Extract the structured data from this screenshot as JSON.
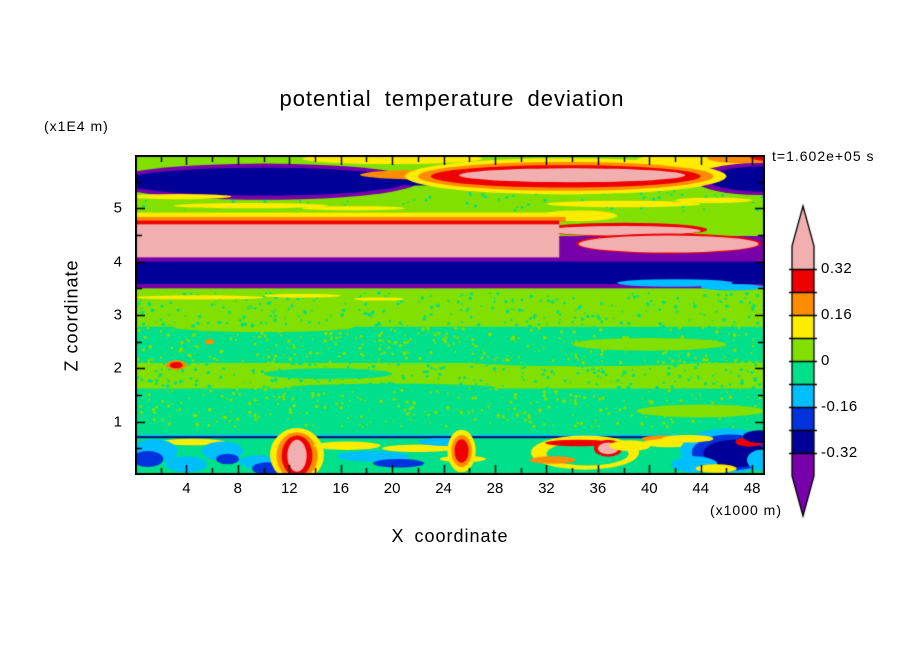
{
  "chart_data": {
    "type": "heatmap",
    "title": "potential temperature deviation",
    "xlabel": "X coordinate",
    "ylabel": "Z coordinate",
    "x_units": "(x1000 m)",
    "y_units": "(x1E4 m)",
    "time_annotation": "t=1.602e+05 s",
    "x_range": [
      0,
      49
    ],
    "y_range": [
      0,
      6
    ],
    "x_ticks": [
      4,
      8,
      12,
      16,
      20,
      24,
      28,
      32,
      36,
      40,
      44,
      48
    ],
    "y_ticks": [
      1,
      2,
      3,
      4,
      5
    ],
    "grid": false,
    "colorbar": {
      "orientation": "vertical",
      "position": "right",
      "colors_top_to_bottom": [
        "#f2afaf",
        "#ee0000",
        "#ff8c00",
        "#ffec00",
        "#82e000",
        "#00df8a",
        "#00bfff",
        "#0033dd",
        "#000099",
        "#7700aa"
      ],
      "boundary_values_top_to_bottom": [
        0.32,
        0.24,
        0.16,
        0.08,
        0,
        -0.08,
        -0.16,
        -0.24,
        -0.32
      ],
      "labels": [
        "0.32",
        "0.16",
        "0",
        "-0.16",
        "-0.32"
      ],
      "labeled_boundary_indices": [
        0,
        2,
        4,
        6,
        8
      ]
    },
    "field": {
      "description": "filled contour field of potential temperature deviation, x in km (x1000 m), z in 1E4 m",
      "shapes": [
        {
          "type": "rect",
          "x0": 0,
          "x1": 49,
          "z0": 0,
          "z1": 6,
          "color": "#82e000"
        },
        {
          "type": "rect",
          "x0": 0,
          "x1": 49,
          "z0": 2.1,
          "z1": 2.78,
          "color": "#00df8a"
        },
        {
          "type": "ellipse",
          "cx": 35,
          "cz": 2.12,
          "rx": 9,
          "rz": 0.08,
          "color": "#00df8a"
        },
        {
          "type": "ellipse",
          "cx": 10,
          "cz": 2.77,
          "rx": 7,
          "rz": 0.09,
          "color": "#82e000"
        },
        {
          "type": "ellipse",
          "cx": 40,
          "cz": 2.45,
          "rx": 6,
          "rz": 0.12,
          "color": "#82e000"
        },
        {
          "type": "rect",
          "x0": 0,
          "x1": 49,
          "z0": 0,
          "z1": 1.62,
          "color": "#00df8a"
        },
        {
          "type": "ellipse",
          "cx": 20,
          "cz": 1.64,
          "rx": 8,
          "rz": 0.07,
          "color": "#00df8a"
        },
        {
          "type": "ellipse",
          "cx": 15,
          "cz": 1.9,
          "rx": 5,
          "rz": 0.1,
          "color": "#00df8a"
        },
        {
          "type": "ellipse",
          "cx": 44,
          "cz": 1.2,
          "rx": 5,
          "rz": 0.12,
          "color": "#82e000"
        },
        {
          "type": "speckle",
          "x0": 0,
          "x1": 49,
          "z0": 2.1,
          "z1": 2.78,
          "color": "#82e000",
          "n": 300,
          "seed": 7,
          "r": 1.2
        },
        {
          "type": "speckle",
          "x0": 0,
          "x1": 49,
          "z0": 1.62,
          "z1": 2.1,
          "color": "#00df8a",
          "n": 220,
          "seed": 11,
          "r": 1.2
        },
        {
          "type": "speckle",
          "x0": 0,
          "x1": 49,
          "z0": 2.78,
          "z1": 3.42,
          "color": "#00df8a",
          "n": 260,
          "seed": 13,
          "r": 1.2
        },
        {
          "type": "speckle",
          "x0": 0,
          "x1": 49,
          "z0": 0.9,
          "z1": 1.62,
          "color": "#82e000",
          "n": 260,
          "seed": 17,
          "r": 1.2
        },
        {
          "type": "speckle",
          "x0": 0,
          "x1": 49,
          "z0": 4.95,
          "z1": 5.35,
          "color": "#00df8a",
          "n": 90,
          "seed": 19,
          "r": 1.1
        },
        {
          "type": "ellipse",
          "cx": 3.2,
          "cz": 2.06,
          "rx": 0.8,
          "rz": 0.09,
          "color": "#ff8c00"
        },
        {
          "type": "ellipse",
          "cx": 3.2,
          "cz": 2.06,
          "rx": 0.5,
          "rz": 0.06,
          "color": "#ee0000"
        },
        {
          "type": "ellipse",
          "cx": 5.8,
          "cz": 2.5,
          "rx": 0.35,
          "rz": 0.05,
          "color": "#ff8c00"
        },
        {
          "type": "ellipse",
          "cx": 5,
          "cz": 3.33,
          "rx": 5,
          "rz": 0.04,
          "color": "#ffec00"
        },
        {
          "type": "ellipse",
          "cx": 13,
          "cz": 3.36,
          "rx": 3,
          "rz": 0.035,
          "color": "#ffec00"
        },
        {
          "type": "ellipse",
          "cx": 19,
          "cz": 3.3,
          "rx": 2,
          "rz": 0.03,
          "color": "#ffec00"
        },
        {
          "type": "ellipse",
          "cx": 20,
          "cz": 5.93,
          "rx": 7,
          "rz": 0.1,
          "color": "#ffec00"
        },
        {
          "type": "ellipse",
          "cx": 44,
          "cz": 5.9,
          "rx": 5,
          "rz": 0.14,
          "color": "#ffec00"
        },
        {
          "type": "ellipse",
          "cx": 47.5,
          "cz": 5.95,
          "rx": 3,
          "rz": 0.11,
          "color": "#ff8c00"
        },
        {
          "type": "ellipse",
          "cx": 49,
          "cz": 5.97,
          "rx": 1.2,
          "rz": 0.08,
          "color": "#ee0000"
        },
        {
          "type": "ellipse",
          "cx": 10,
          "cz": 5.5,
          "rx": 12,
          "rz": 0.34,
          "color": "#7700aa"
        },
        {
          "type": "ellipse",
          "cx": 10,
          "cz": 5.5,
          "rx": 11.2,
          "rz": 0.26,
          "color": "#000099"
        },
        {
          "type": "ellipse",
          "cx": 22,
          "cz": 5.55,
          "rx": 6,
          "rz": 0.12,
          "color": "#000099"
        },
        {
          "type": "ellipse",
          "cx": 48.5,
          "cz": 5.55,
          "rx": 5,
          "rz": 0.3,
          "color": "#7700aa"
        },
        {
          "type": "ellipse",
          "cx": 49,
          "cz": 5.55,
          "rx": 4.5,
          "rz": 0.24,
          "color": "#000099"
        },
        {
          "type": "ellipse",
          "cx": 23,
          "cz": 5.63,
          "rx": 5.5,
          "rz": 0.09,
          "color": "#ff8c00"
        },
        {
          "type": "ellipse",
          "cx": 33.5,
          "cz": 5.6,
          "rx": 12.5,
          "rz": 0.34,
          "color": "#ffec00"
        },
        {
          "type": "ellipse",
          "cx": 33.5,
          "cz": 5.6,
          "rx": 11.5,
          "rz": 0.27,
          "color": "#ff8c00"
        },
        {
          "type": "ellipse",
          "cx": 33.5,
          "cz": 5.6,
          "rx": 10.5,
          "rz": 0.21,
          "color": "#ee0000"
        },
        {
          "type": "ellipse",
          "cx": 34,
          "cz": 5.62,
          "rx": 8.8,
          "rz": 0.13,
          "color": "#f2afaf"
        },
        {
          "type": "ellipse",
          "cx": 3.5,
          "cz": 5.22,
          "rx": 4,
          "rz": 0.05,
          "color": "#ffec00"
        },
        {
          "type": "ellipse",
          "cx": 9,
          "cz": 5.05,
          "rx": 6,
          "rz": 0.05,
          "color": "#ffec00"
        },
        {
          "type": "ellipse",
          "cx": 17,
          "cz": 5.0,
          "rx": 4,
          "rz": 0.04,
          "color": "#ffec00"
        },
        {
          "type": "ellipse",
          "cx": 38,
          "cz": 5.08,
          "rx": 6,
          "rz": 0.06,
          "color": "#ffec00"
        },
        {
          "type": "ellipse",
          "cx": 45,
          "cz": 5.15,
          "rx": 3,
          "rz": 0.05,
          "color": "#ffec00"
        },
        {
          "type": "rect",
          "x0": 0,
          "x1": 34,
          "z0": 4.8,
          "z1": 4.92,
          "color": "#ffec00"
        },
        {
          "type": "ellipse",
          "cx": 34.5,
          "cz": 4.86,
          "rx": 3,
          "rz": 0.1,
          "color": "#ffec00"
        },
        {
          "type": "rect",
          "x0": 0,
          "x1": 33.5,
          "z0": 4.74,
          "z1": 4.84,
          "color": "#ff8c00"
        },
        {
          "type": "rect",
          "x0": 0,
          "x1": 33,
          "z0": 4.66,
          "z1": 4.77,
          "color": "#ee0000"
        },
        {
          "type": "ellipse",
          "cx": 38,
          "cz": 4.6,
          "rx": 6.5,
          "rz": 0.13,
          "color": "#ee0000"
        },
        {
          "type": "rect",
          "x0": 0,
          "x1": 33,
          "z0": 4.02,
          "z1": 4.7,
          "color": "#f2afaf"
        },
        {
          "type": "ellipse",
          "cx": 38,
          "cz": 4.58,
          "rx": 6,
          "rz": 0.09,
          "color": "#f2afaf"
        },
        {
          "type": "rect",
          "x0": 33,
          "x1": 49,
          "z0": 4.0,
          "z1": 4.48,
          "color": "#7700aa"
        },
        {
          "type": "rect",
          "x0": 0,
          "x1": 49,
          "z0": 3.5,
          "z1": 4.08,
          "color": "#7700aa"
        },
        {
          "type": "rect",
          "x0": 0,
          "x1": 49,
          "z0": 3.58,
          "z1": 4.0,
          "color": "#000099"
        },
        {
          "type": "ellipse",
          "cx": 41.5,
          "cz": 4.34,
          "rx": 7.2,
          "rz": 0.19,
          "color": "#ee0000"
        },
        {
          "type": "ellipse",
          "cx": 41.5,
          "cz": 4.33,
          "rx": 7,
          "rz": 0.16,
          "color": "#f2afaf"
        },
        {
          "type": "ellipse",
          "cx": 42,
          "cz": 3.6,
          "rx": 4.5,
          "rz": 0.07,
          "color": "#00bfff"
        },
        {
          "type": "ellipse",
          "cx": 46.5,
          "cz": 3.52,
          "rx": 2.5,
          "rz": 0.06,
          "color": "#00bfff"
        },
        {
          "type": "rect",
          "x0": 0,
          "x1": 49,
          "z0": 0.725,
          "z1": 0.755,
          "color": "#00bfff"
        },
        {
          "type": "rect",
          "x0": 0,
          "x1": 49,
          "z0": 0.69,
          "z1": 0.728,
          "color": "#000e77"
        },
        {
          "type": "ellipse",
          "cx": 4.5,
          "cz": 0.62,
          "rx": 2.5,
          "rz": 0.06,
          "color": "#ffec00"
        },
        {
          "type": "ellipse",
          "cx": 1.5,
          "cz": 0.45,
          "rx": 1.8,
          "rz": 0.22,
          "color": "#00bfff"
        },
        {
          "type": "ellipse",
          "cx": 1.0,
          "cz": 0.3,
          "rx": 1.2,
          "rz": 0.15,
          "color": "#0033dd"
        },
        {
          "type": "ellipse",
          "cx": 4.0,
          "cz": 0.2,
          "rx": 1.6,
          "rz": 0.15,
          "color": "#00bfff"
        },
        {
          "type": "ellipse",
          "cx": 6.8,
          "cz": 0.45,
          "rx": 1.6,
          "rz": 0.18,
          "color": "#00bfff"
        },
        {
          "type": "ellipse",
          "cx": 7.2,
          "cz": 0.3,
          "rx": 0.9,
          "rz": 0.1,
          "color": "#0033dd"
        },
        {
          "type": "ellipse",
          "cx": 9.5,
          "cz": 0.25,
          "rx": 1.4,
          "rz": 0.12,
          "color": "#00bfff"
        },
        {
          "type": "ellipse",
          "cx": 10.3,
          "cz": 0.12,
          "rx": 1.2,
          "rz": 0.12,
          "color": "#0033dd"
        },
        {
          "type": "ellipse",
          "cx": 12.6,
          "cz": 0.38,
          "rx": 2.1,
          "rz": 0.5,
          "color": "#ffec00"
        },
        {
          "type": "ellipse",
          "cx": 12.6,
          "cz": 0.36,
          "rx": 1.6,
          "rz": 0.44,
          "color": "#ff8c00"
        },
        {
          "type": "ellipse",
          "cx": 12.6,
          "cz": 0.36,
          "rx": 1.2,
          "rz": 0.38,
          "color": "#ee0000"
        },
        {
          "type": "ellipse",
          "cx": 12.6,
          "cz": 0.36,
          "rx": 0.75,
          "rz": 0.3,
          "color": "#f2afaf"
        },
        {
          "type": "ellipse",
          "cx": 16.5,
          "cz": 0.55,
          "rx": 2.6,
          "rz": 0.08,
          "color": "#ffec00"
        },
        {
          "type": "ellipse",
          "cx": 18.5,
          "cz": 0.35,
          "rx": 2.8,
          "rz": 0.1,
          "color": "#00bfff"
        },
        {
          "type": "ellipse",
          "cx": 20.5,
          "cz": 0.22,
          "rx": 2.0,
          "rz": 0.08,
          "color": "#0033dd"
        },
        {
          "type": "ellipse",
          "cx": 22,
          "cz": 0.5,
          "rx": 2.8,
          "rz": 0.07,
          "color": "#ffec00"
        },
        {
          "type": "ellipse",
          "cx": 24,
          "cz": 0.62,
          "rx": 2.0,
          "rz": 0.07,
          "color": "#00bfff"
        },
        {
          "type": "ellipse",
          "cx": 25.5,
          "cz": 0.3,
          "rx": 1.8,
          "rz": 0.06,
          "color": "#ffec00"
        },
        {
          "type": "ellipse",
          "cx": 25.4,
          "cz": 0.45,
          "rx": 1.1,
          "rz": 0.4,
          "color": "#ffec00"
        },
        {
          "type": "ellipse",
          "cx": 25.4,
          "cz": 0.45,
          "rx": 0.8,
          "rz": 0.3,
          "color": "#ff8c00"
        },
        {
          "type": "ellipse",
          "cx": 25.4,
          "cz": 0.45,
          "rx": 0.55,
          "rz": 0.22,
          "color": "#ee0000"
        },
        {
          "type": "ellipse",
          "cx": 35,
          "cz": 0.42,
          "rx": 4.2,
          "rz": 0.32,
          "color": "#ffec00"
        },
        {
          "type": "ellipse",
          "cx": 35.2,
          "cz": 0.4,
          "rx": 3.2,
          "rz": 0.22,
          "color": "#00df8a"
        },
        {
          "type": "ellipse",
          "cx": 34.5,
          "cz": 0.6,
          "rx": 2.6,
          "rz": 0.06,
          "color": "#ee0000"
        },
        {
          "type": "ellipse",
          "cx": 32.5,
          "cz": 0.28,
          "rx": 1.8,
          "rz": 0.07,
          "color": "#ff8c00"
        },
        {
          "type": "ellipse",
          "cx": 36.8,
          "cz": 0.5,
          "rx": 1.1,
          "rz": 0.16,
          "color": "#ee0000"
        },
        {
          "type": "ellipse",
          "cx": 36.8,
          "cz": 0.5,
          "rx": 0.8,
          "rz": 0.11,
          "color": "#f2afaf"
        },
        {
          "type": "ellipse",
          "cx": 38.5,
          "cz": 0.55,
          "rx": 1.6,
          "rz": 0.1,
          "color": "#ffec00"
        },
        {
          "type": "ellipse",
          "cx": 41,
          "cz": 0.68,
          "rx": 1.6,
          "rz": 0.06,
          "color": "#ff8c00"
        },
        {
          "type": "ellipse",
          "cx": 41.5,
          "cz": 0.6,
          "rx": 2.0,
          "rz": 0.08,
          "color": "#ffec00"
        },
        {
          "type": "ellipse",
          "cx": 46,
          "cz": 0.45,
          "rx": 3.6,
          "rz": 0.42,
          "color": "#00bfff"
        },
        {
          "type": "ellipse",
          "cx": 46.3,
          "cz": 0.42,
          "rx": 3.0,
          "rz": 0.34,
          "color": "#0033dd"
        },
        {
          "type": "ellipse",
          "cx": 46.6,
          "cz": 0.4,
          "rx": 2.4,
          "rz": 0.26,
          "color": "#000099"
        },
        {
          "type": "ellipse",
          "cx": 43.5,
          "cz": 0.2,
          "rx": 1.8,
          "rz": 0.15,
          "color": "#00bfff"
        },
        {
          "type": "ellipse",
          "cx": 43.0,
          "cz": 0.68,
          "rx": 2.0,
          "rz": 0.07,
          "color": "#ffec00"
        },
        {
          "type": "ellipse",
          "cx": 47.8,
          "cz": 0.62,
          "rx": 1.1,
          "rz": 0.09,
          "color": "#ee0000"
        },
        {
          "type": "ellipse",
          "cx": 48.6,
          "cz": 0.72,
          "rx": 1.3,
          "rz": 0.12,
          "color": "#000099"
        },
        {
          "type": "ellipse",
          "cx": 48.8,
          "cz": 0.28,
          "rx": 1.2,
          "rz": 0.2,
          "color": "#00bfff"
        },
        {
          "type": "ellipse",
          "cx": 45.2,
          "cz": 0.12,
          "rx": 1.6,
          "rz": 0.08,
          "color": "#ffec00"
        }
      ]
    }
  }
}
